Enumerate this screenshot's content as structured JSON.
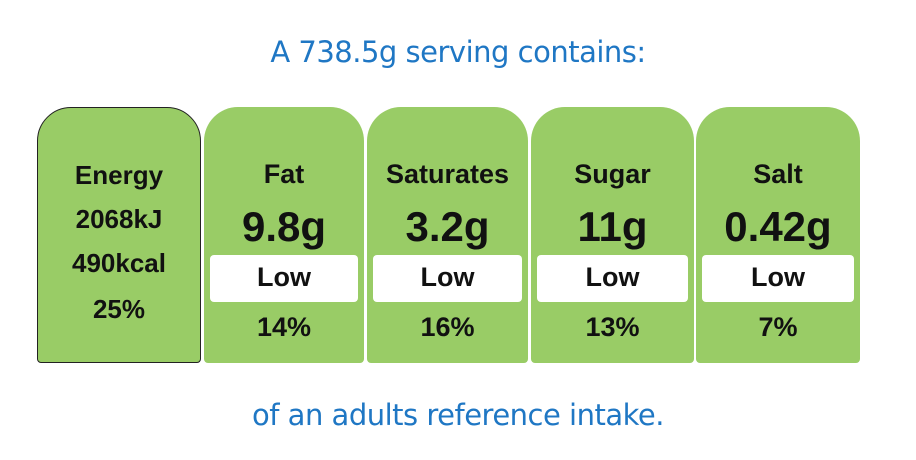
{
  "header": {
    "text": "A 738.5g serving contains:"
  },
  "footer": {
    "text": "of an adults reference intake."
  },
  "colors": {
    "panel_fill": "#99cc66",
    "heading_text": "#1f77c4",
    "level_box": "#ffffff"
  },
  "energy": {
    "label": "Energy",
    "kj": "2068kJ",
    "kcal": "490kcal",
    "percent": "25%"
  },
  "nutrients": [
    {
      "label": "Fat",
      "amount": "9.8g",
      "level": "Low",
      "percent": "14%"
    },
    {
      "label": "Saturates",
      "amount": "3.2g",
      "level": "Low",
      "percent": "16%"
    },
    {
      "label": "Sugar",
      "amount": "11g",
      "level": "Low",
      "percent": "13%"
    },
    {
      "label": "Salt",
      "amount": "0.42g",
      "level": "Low",
      "percent": "7%"
    }
  ]
}
